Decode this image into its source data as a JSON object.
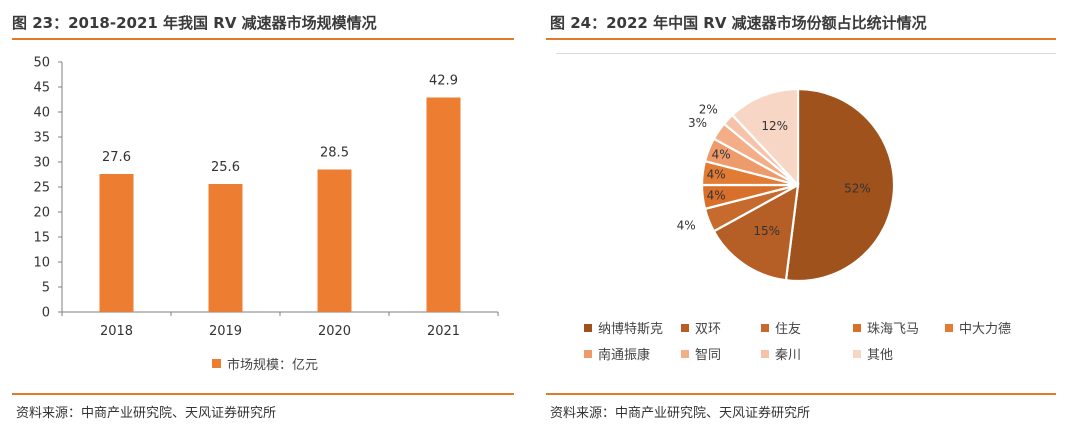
{
  "left": {
    "title": "图 23：2018-2021 年我国 RV 减速器市场规模情况",
    "source": "资料来源：中商产业研究院、天风证券研究所"
  },
  "right": {
    "title": "图 24：2022 年中国 RV 减速器市场份额占比统计情况",
    "source": "资料来源：中商产业研究院、天风证券研究所"
  },
  "chart_data": [
    {
      "type": "bar",
      "categories": [
        "2018",
        "2019",
        "2020",
        "2021"
      ],
      "series": [
        {
          "name": "市场规模：亿元",
          "values": [
            27.6,
            25.6,
            28.5,
            42.9
          ],
          "color": "#ed7d31"
        }
      ],
      "data_labels": [
        "27.6",
        "25.6",
        "28.5",
        "42.9"
      ],
      "ylim": [
        0,
        50
      ],
      "yticks": [
        0,
        5,
        10,
        15,
        20,
        25,
        30,
        35,
        40,
        45,
        50
      ],
      "grid": false,
      "legend": "bottom"
    },
    {
      "type": "pie",
      "labels": [
        "纳博特斯克",
        "双环",
        "住友",
        "珠海飞马",
        "中大力德",
        "南通振康",
        "智同",
        "秦川",
        "其他"
      ],
      "values": [
        52,
        15,
        4,
        4,
        4,
        4,
        3,
        2,
        12
      ],
      "data_labels": [
        "52%",
        "15%",
        "4%",
        "4%",
        "4%",
        "4%",
        "3%",
        "2%",
        "12%"
      ],
      "colors": [
        "#a0521d",
        "#b55e25",
        "#c76a2d",
        "#d86f2a",
        "#e27c35",
        "#ee9b6c",
        "#f3ae87",
        "#f6c2aa",
        "#f8d6c6"
      ],
      "legend": "bottom"
    }
  ]
}
